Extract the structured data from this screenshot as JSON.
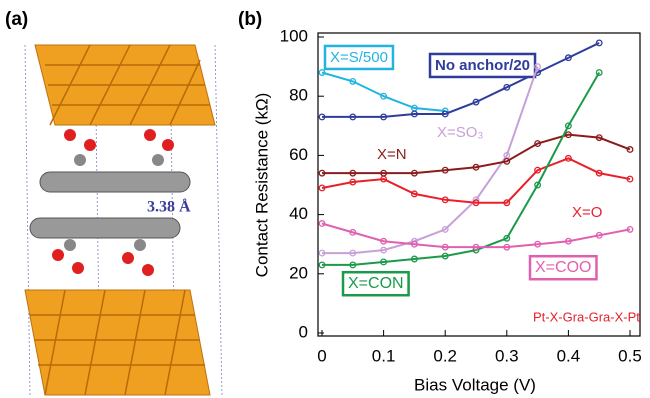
{
  "panel_a": {
    "label": "(a)",
    "distance": "3.38 Å"
  },
  "chart_data": {
    "type": "line",
    "panel_label": "(b)",
    "x_label": "Bias Voltage (V)",
    "y_label": "Contact Resistance (kΩ)",
    "annotation": "Pt-X-Gra-Gra-X-Pt",
    "x": [
      0,
      0.05,
      0.1,
      0.15,
      0.2,
      0.25,
      0.3,
      0.35,
      0.4,
      0.45,
      0.5
    ],
    "xlim": [
      0,
      0.5
    ],
    "xticks": [
      0,
      0.1,
      0.2,
      0.3,
      0.4,
      0.5
    ],
    "ylim": [
      0,
      100
    ],
    "yticks": [
      0,
      20,
      40,
      60,
      80,
      100
    ],
    "series": [
      {
        "name": "X=S/500",
        "color": "#22b4e0",
        "values": [
          88,
          85,
          80,
          76,
          75,
          null,
          null,
          null,
          null,
          null,
          null
        ]
      },
      {
        "name": "No anchor/20",
        "color": "#2e3c9c",
        "values": [
          73,
          73,
          73,
          74,
          74,
          78,
          83,
          88,
          93,
          98,
          null
        ]
      },
      {
        "name": "X=SO₃",
        "color": "#c8a0d8",
        "values": [
          27,
          27,
          28,
          31,
          35,
          45,
          60,
          90,
          null,
          null,
          null
        ]
      },
      {
        "name": "X=N",
        "color": "#8b1c1c",
        "values": [
          54,
          54,
          54,
          54,
          55,
          56,
          58,
          64,
          67,
          66,
          62
        ]
      },
      {
        "name": "X=O",
        "color": "#e8202a",
        "values": [
          49,
          51,
          52,
          47,
          45,
          44,
          44,
          55,
          59,
          54,
          52
        ]
      },
      {
        "name": "X=CON",
        "color": "#1a9a4a",
        "values": [
          23,
          23,
          24,
          25,
          26,
          28,
          32,
          50,
          70,
          88,
          null
        ]
      },
      {
        "name": "X=COO",
        "color": "#e060b0",
        "values": [
          37,
          34,
          31,
          30,
          29,
          29,
          29,
          30,
          31,
          33,
          35
        ]
      }
    ]
  }
}
